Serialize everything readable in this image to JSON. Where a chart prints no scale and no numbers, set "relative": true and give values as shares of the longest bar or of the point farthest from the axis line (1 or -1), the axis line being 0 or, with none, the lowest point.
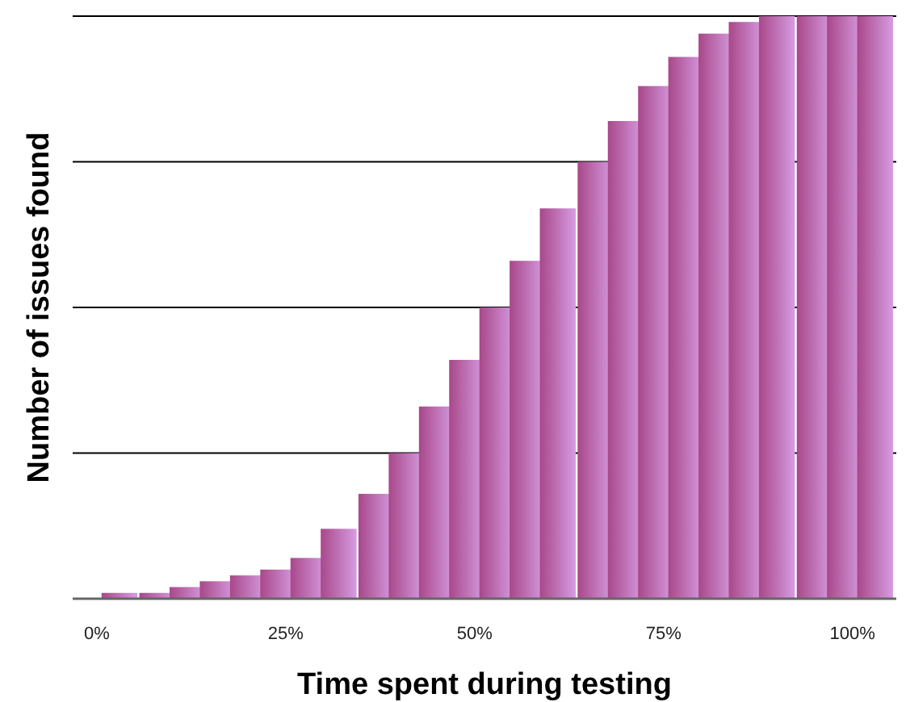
{
  "chart_data": {
    "type": "bar",
    "relative": true,
    "xlabel": "Time spent during testing",
    "ylabel": "Number of issues found",
    "x": [
      3,
      8,
      12,
      16,
      20,
      24,
      28,
      32,
      37,
      41,
      45,
      49,
      53,
      57,
      61,
      66,
      70,
      74,
      78,
      82,
      86,
      90,
      95,
      99,
      103
    ],
    "values": [
      0.01,
      0.01,
      0.02,
      0.03,
      0.04,
      0.05,
      0.07,
      0.12,
      0.18,
      0.25,
      0.33,
      0.41,
      0.5,
      0.58,
      0.67,
      0.75,
      0.82,
      0.88,
      0.93,
      0.97,
      0.99,
      1,
      1,
      1,
      1
    ],
    "color": "#a8488a",
    "xlim": [
      -3.2,
      105.8
    ],
    "xticks": [
      {
        "value": 0,
        "label": "0%"
      },
      {
        "value": 25,
        "label": "25%"
      },
      {
        "value": 50,
        "label": "50%"
      },
      {
        "value": 75,
        "label": "75%"
      },
      {
        "value": 100,
        "label": "100%"
      }
    ],
    "tick_labels": "x",
    "grid": "y"
  }
}
